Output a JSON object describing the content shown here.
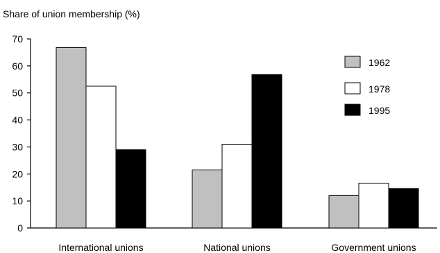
{
  "chart_data": {
    "type": "bar",
    "ylabel": "Share of union membership (%)",
    "xlabel": "",
    "categories": [
      "International unions",
      "National unions",
      "Government unions"
    ],
    "series": [
      {
        "name": "1962",
        "values": [
          66.8,
          21.5,
          12.0
        ],
        "color": "#c0c0c0"
      },
      {
        "name": "1978",
        "values": [
          52.5,
          31.0,
          16.6
        ],
        "color": "#ffffff"
      },
      {
        "name": "1995",
        "values": [
          29.0,
          56.8,
          14.6
        ],
        "color": "#000000"
      }
    ],
    "ylim": [
      0,
      70
    ],
    "yticks": [
      0,
      10,
      20,
      30,
      40,
      50,
      60,
      70
    ],
    "grid": false,
    "legend_position": "right"
  }
}
